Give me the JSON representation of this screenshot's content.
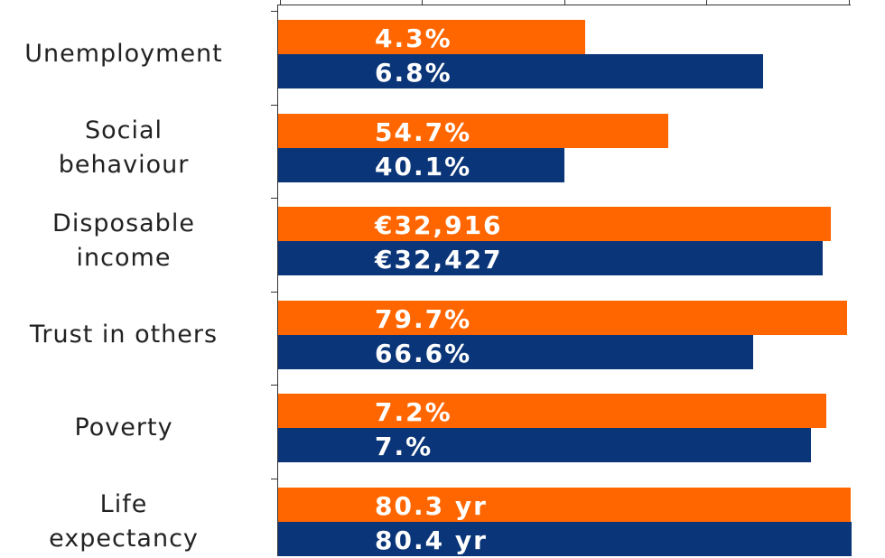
{
  "chart_data": [
    {
      "type": "bar",
      "categories": [
        "Unemployment"
      ],
      "xlim": [
        0,
        8
      ],
      "series": [
        {
          "color": "#ff6600",
          "values": [
            4.3
          ],
          "value_labels": [
            "4.3%"
          ]
        },
        {
          "color": "#0a3578",
          "values": [
            6.8
          ],
          "value_labels": [
            "6.8%"
          ]
        }
      ]
    },
    {
      "type": "bar",
      "categories": [
        "Social\nbehaviour"
      ],
      "xlim": [
        0,
        80
      ],
      "series": [
        {
          "color": "#ff6600",
          "values": [
            54.7
          ],
          "value_labels": [
            "54.7%"
          ]
        },
        {
          "color": "#0a3578",
          "values": [
            40.1
          ],
          "value_labels": [
            "40.1%"
          ]
        }
      ]
    },
    {
      "type": "bar",
      "categories": [
        "Disposable\nincome"
      ],
      "xlim": [
        0,
        34000
      ],
      "series": [
        {
          "color": "#ff6600",
          "values": [
            32916
          ],
          "value_labels": [
            "€32,916"
          ]
        },
        {
          "color": "#0a3578",
          "values": [
            32427
          ],
          "value_labels": [
            "€32,427"
          ]
        }
      ]
    },
    {
      "type": "bar",
      "categories": [
        "Trust in others"
      ],
      "xlim": [
        0,
        80
      ],
      "series": [
        {
          "color": "#ff6600",
          "values": [
            79.7
          ],
          "value_labels": [
            "79.7%"
          ]
        },
        {
          "color": "#0a3578",
          "values": [
            66.6
          ],
          "value_labels": [
            "66.6%"
          ]
        }
      ]
    },
    {
      "type": "bar",
      "categories": [
        "Poverty"
      ],
      "xlim": [
        0,
        7.5
      ],
      "series": [
        {
          "color": "#ff6600",
          "values": [
            7.2
          ],
          "value_labels": [
            "7.2%"
          ]
        },
        {
          "color": "#0a3578",
          "values": [
            7
          ],
          "value_labels": [
            "7.%"
          ]
        }
      ]
    },
    {
      "type": "bar",
      "categories": [
        "Life\nexpectancy"
      ],
      "xlim": [
        0,
        80
      ],
      "series": [
        {
          "color": "#ff6600",
          "values": [
            80.3
          ],
          "value_labels": [
            "80.3 yr"
          ]
        },
        {
          "color": "#0a3578",
          "values": [
            80.4
          ],
          "value_labels": [
            "80.4 yr"
          ]
        }
      ]
    }
  ]
}
